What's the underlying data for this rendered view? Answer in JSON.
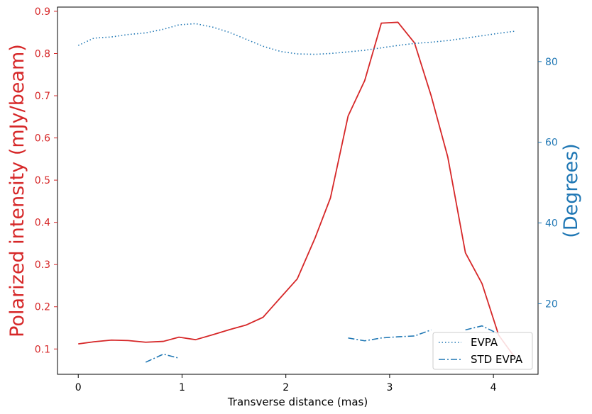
{
  "colors": {
    "left_axis": "#d62728",
    "right_axis": "#1f77b4",
    "frame": "#000000",
    "background": "#ffffff"
  },
  "chart_data": {
    "type": "line",
    "title": "",
    "xlabel": "Transverse distance (mas)",
    "ylabel_left": "Polarized intensity (mJy/beam)",
    "ylabel_right": "(Degrees)",
    "xlim": [
      -0.2,
      4.43
    ],
    "ylim_left": [
      0.04,
      0.91
    ],
    "ylim_right": [
      2.5,
      93.5
    ],
    "x_ticks": [
      0,
      1,
      2,
      3,
      4
    ],
    "y_left_ticks": [
      0.1,
      0.2,
      0.3,
      0.4,
      0.5,
      0.6,
      0.7,
      0.8,
      0.9
    ],
    "y_right_ticks": [
      20,
      40,
      60,
      80
    ],
    "grid": false,
    "legend": {
      "position": "bottom-right"
    },
    "series": [
      {
        "axis": "left",
        "style": "solid",
        "color": "#d62728",
        "x": [
          0,
          0.15,
          0.32,
          0.48,
          0.65,
          0.82,
          0.97,
          1.13,
          1.3,
          1.46,
          1.62,
          1.78,
          1.95,
          2.11,
          2.28,
          2.43,
          2.6,
          2.76,
          2.92,
          3.08,
          3.24,
          3.4,
          3.56,
          3.73,
          3.89,
          4.05,
          4.2
        ],
        "values": [
          0.112,
          0.117,
          0.121,
          0.12,
          0.116,
          0.118,
          0.128,
          0.122,
          0.134,
          0.146,
          0.157,
          0.175,
          0.222,
          0.266,
          0.362,
          0.458,
          0.652,
          0.736,
          0.872,
          0.874,
          0.825,
          0.7,
          0.555,
          0.328,
          0.255,
          0.133,
          0.082
        ]
      },
      {
        "name": "EVPA",
        "axis": "right",
        "style": "dotted",
        "color": "#1f77b4",
        "x": [
          0,
          0.15,
          0.32,
          0.48,
          0.65,
          0.82,
          0.97,
          1.13,
          1.3,
          1.46,
          1.62,
          1.78,
          1.95,
          2.11,
          2.28,
          2.43,
          2.6,
          2.76,
          2.92,
          3.08,
          3.24,
          3.4,
          3.56,
          3.73,
          3.89,
          4.05,
          4.2
        ],
        "values": [
          84.0,
          85.8,
          86.1,
          86.7,
          87.1,
          88.0,
          89.1,
          89.4,
          88.5,
          87.2,
          85.5,
          83.8,
          82.5,
          81.9,
          81.8,
          82.0,
          82.4,
          82.8,
          83.4,
          84.0,
          84.5,
          84.8,
          85.2,
          85.8,
          86.4,
          87.0,
          87.5
        ]
      },
      {
        "name": "STD EVPA",
        "axis": "right",
        "style": "dashdot",
        "color": "#1f77b4",
        "segments": [
          {
            "x": [
              0.65,
              0.82,
              0.97
            ],
            "values": [
              5.5,
              7.5,
              6.5
            ]
          },
          {
            "x": [
              2.6,
              2.76,
              2.92,
              3.08,
              3.24,
              3.4
            ],
            "values": [
              11.5,
              10.8,
              11.5,
              11.8,
              12.0,
              13.5
            ]
          },
          {
            "x": [
              3.73,
              3.89,
              4.05
            ],
            "values": [
              13.5,
              14.5,
              12.5
            ]
          }
        ]
      }
    ]
  }
}
